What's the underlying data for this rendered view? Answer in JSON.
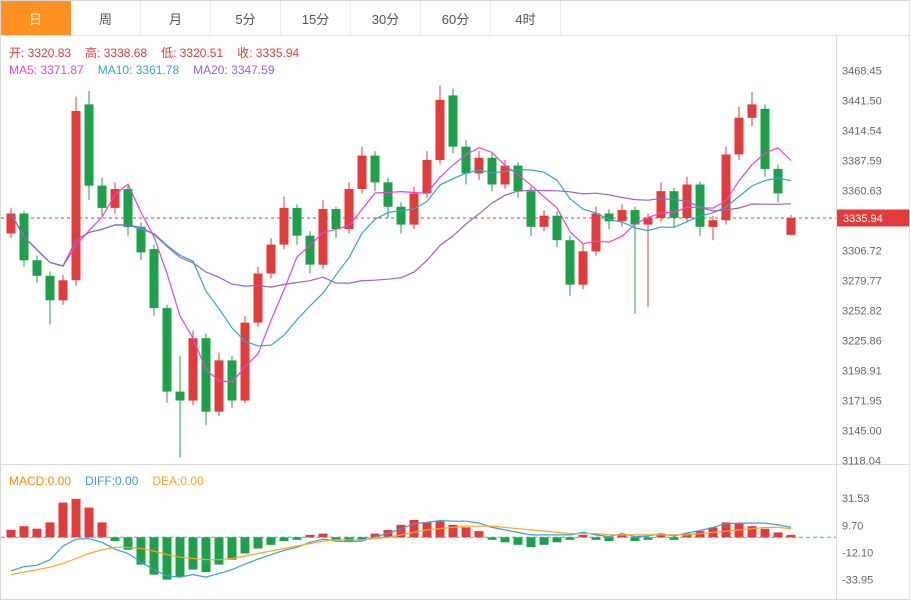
{
  "tabbar": {
    "items": [
      {
        "label": "日",
        "name": "tab-day",
        "active": true
      },
      {
        "label": "周",
        "name": "tab-week",
        "active": false
      },
      {
        "label": "月",
        "name": "tab-month",
        "active": false
      },
      {
        "label": "5分",
        "name": "tab-5min",
        "active": false
      },
      {
        "label": "15分",
        "name": "tab-15min",
        "active": false
      },
      {
        "label": "30分",
        "name": "tab-30min",
        "active": false
      },
      {
        "label": "60分",
        "name": "tab-60min",
        "active": false
      },
      {
        "label": "4时",
        "name": "tab-4hour",
        "active": false
      }
    ]
  },
  "ohlc_readout": {
    "sep": " ",
    "items": [
      {
        "label": "开:",
        "value": "3320.83",
        "color": "#e23b3c"
      },
      {
        "label": "高:",
        "value": "3338.68",
        "color": "#e23b3c"
      },
      {
        "label": "低:",
        "value": "3320.51",
        "color": "#e23b3c"
      },
      {
        "label": "收:",
        "value": "3335.94",
        "color": "#e23b3c"
      }
    ]
  },
  "ma_readout": {
    "sep": " ",
    "items": [
      {
        "label": "MA5:",
        "value": "3371.87",
        "color": "#ef43cf"
      },
      {
        "label": "MA10:",
        "value": "3361.78",
        "color": "#2fa7c9"
      },
      {
        "label": "MA20:",
        "value": "3347.59",
        "color": "#9a63c4"
      }
    ]
  },
  "macd_readout": {
    "sep": "",
    "items": [
      {
        "label": "MACD:",
        "value": "0.00",
        "color": "#ff8a00"
      },
      {
        "label": "DIFF:",
        "value": "0.00",
        "color": "#3c9fd6"
      },
      {
        "label": "DEA:",
        "value": "0.00",
        "color": "#ffa425"
      }
    ]
  },
  "price_axis": {
    "current": "3335.94"
  },
  "chart_data": {
    "type": "candlestick",
    "up_color": "#e23b3c",
    "down_color": "#1ca04a",
    "price_range": [
      3115,
      3494
    ],
    "price_ticks": [
      3468.45,
      3441.5,
      3414.54,
      3387.59,
      3360.63,
      3306.72,
      3279.77,
      3252.82,
      3225.86,
      3198.91,
      3171.95,
      3145.0,
      3118.04
    ],
    "current_price": 3335.94,
    "ohlc_header": {
      "open": 3320.83,
      "high": 3338.68,
      "low": 3320.51,
      "close": 3335.94
    },
    "moving_averages": [
      {
        "name": "MA5",
        "period": 5,
        "color": "#ef43cf",
        "last_value": 3371.87
      },
      {
        "name": "MA10",
        "period": 10,
        "color": "#2fa7c9",
        "last_value": 3361.78
      },
      {
        "name": "MA20",
        "period": 20,
        "color": "#9a63c4",
        "last_value": 3347.59
      }
    ],
    "candles_ohlc": [
      [
        3322,
        3345,
        3318,
        3340
      ],
      [
        3340,
        3342,
        3292,
        3298
      ],
      [
        3298,
        3302,
        3278,
        3284
      ],
      [
        3284,
        3288,
        3240,
        3262
      ],
      [
        3262,
        3285,
        3258,
        3280
      ],
      [
        3280,
        3445,
        3275,
        3432
      ],
      [
        3438,
        3450,
        3352,
        3365
      ],
      [
        3365,
        3372,
        3338,
        3345
      ],
      [
        3345,
        3368,
        3340,
        3362
      ],
      [
        3362,
        3365,
        3320,
        3328
      ],
      [
        3328,
        3332,
        3298,
        3305
      ],
      [
        3308,
        3312,
        3248,
        3255
      ],
      [
        3255,
        3258,
        3170,
        3180
      ],
      [
        3180,
        3212,
        3121,
        3172
      ],
      [
        3172,
        3235,
        3168,
        3228
      ],
      [
        3228,
        3232,
        3150,
        3162
      ],
      [
        3162,
        3215,
        3158,
        3208
      ],
      [
        3208,
        3212,
        3165,
        3172
      ],
      [
        3172,
        3248,
        3170,
        3242
      ],
      [
        3242,
        3292,
        3238,
        3286
      ],
      [
        3286,
        3318,
        3282,
        3312
      ],
      [
        3312,
        3355,
        3308,
        3345
      ],
      [
        3345,
        3348,
        3312,
        3320
      ],
      [
        3320,
        3324,
        3286,
        3294
      ],
      [
        3294,
        3352,
        3290,
        3344
      ],
      [
        3344,
        3346,
        3318,
        3326
      ],
      [
        3326,
        3368,
        3322,
        3362
      ],
      [
        3362,
        3400,
        3358,
        3392
      ],
      [
        3392,
        3396,
        3360,
        3368
      ],
      [
        3368,
        3372,
        3336,
        3346
      ],
      [
        3346,
        3350,
        3322,
        3330
      ],
      [
        3330,
        3364,
        3326,
        3358
      ],
      [
        3358,
        3396,
        3354,
        3388
      ],
      [
        3388,
        3455,
        3384,
        3442
      ],
      [
        3446,
        3452,
        3394,
        3400
      ],
      [
        3400,
        3406,
        3366,
        3376
      ],
      [
        3376,
        3396,
        3370,
        3390
      ],
      [
        3390,
        3394,
        3360,
        3366
      ],
      [
        3366,
        3388,
        3362,
        3383
      ],
      [
        3383,
        3386,
        3354,
        3360
      ],
      [
        3360,
        3364,
        3320,
        3328
      ],
      [
        3328,
        3343,
        3324,
        3338
      ],
      [
        3338,
        3342,
        3310,
        3316
      ],
      [
        3316,
        3320,
        3266,
        3276
      ],
      [
        3276,
        3312,
        3272,
        3306
      ],
      [
        3306,
        3346,
        3302,
        3340
      ],
      [
        3340,
        3344,
        3326,
        3333
      ],
      [
        3333,
        3348,
        3328,
        3343
      ],
      [
        3343,
        3346,
        3250,
        3330
      ],
      [
        3330,
        3340,
        3256,
        3336
      ],
      [
        3336,
        3368,
        3332,
        3360
      ],
      [
        3360,
        3363,
        3328,
        3336
      ],
      [
        3336,
        3373,
        3332,
        3366
      ],
      [
        3366,
        3369,
        3320,
        3328
      ],
      [
        3328,
        3338,
        3316,
        3334
      ],
      [
        3334,
        3400,
        3330,
        3393
      ],
      [
        3393,
        3436,
        3388,
        3426
      ],
      [
        3426,
        3449,
        3418,
        3438
      ],
      [
        3434,
        3438,
        3373,
        3380
      ],
      [
        3380,
        3384,
        3350,
        3358
      ],
      [
        3320.83,
        3338.68,
        3320.51,
        3335.94
      ]
    ],
    "macd": {
      "ticks": [
        31.53,
        9.7,
        -12.1,
        -33.95
      ],
      "range": [
        -48,
        55
      ],
      "zero_line_color": "#35b9c6",
      "diff_color": "#3c9fd6",
      "dea_color": "#ffa425",
      "values_shown": {
        "MACD": "0.00",
        "DIFF": "0.00",
        "DEA": "0.00"
      },
      "histogram": [
        6,
        9,
        7,
        12,
        28,
        31,
        24,
        12,
        -3,
        -10,
        -22,
        -30,
        -34,
        -32,
        -26,
        -28,
        -22,
        -18,
        -13,
        -9,
        -6,
        -3,
        -2,
        2,
        3,
        -2,
        -3,
        -2,
        3,
        6,
        10,
        14,
        12,
        13,
        10,
        8,
        5,
        -2,
        -4,
        -6,
        -8,
        -6,
        -4,
        -2,
        2,
        -2,
        -3,
        2,
        -3,
        -2,
        2,
        -2,
        3,
        5,
        8,
        12,
        11,
        9,
        7,
        4,
        2
      ],
      "diff": [
        -27,
        -23.5,
        -22.5,
        -18,
        -7,
        -1.5,
        -1,
        -4,
        -9.5,
        -13,
        -20,
        -26,
        -31,
        -32,
        -30,
        -32,
        -29,
        -26,
        -21.5,
        -17.5,
        -14,
        -10.5,
        -8,
        -4,
        -1.5,
        -3,
        -3.5,
        -3,
        0.5,
        3,
        7,
        11,
        12,
        13.5,
        13,
        13,
        11.5,
        8,
        6,
        4,
        2,
        2,
        2,
        2,
        4,
        2,
        0.5,
        3,
        0.5,
        1,
        3,
        1,
        3.5,
        5.5,
        8,
        11,
        11.5,
        11.5,
        11.5,
        10,
        8
      ],
      "dea": [
        -30,
        -28,
        -26,
        -24,
        -21,
        -17,
        -13,
        -10,
        -8,
        -8,
        -9,
        -11,
        -14,
        -16,
        -17,
        -18,
        -18,
        -17,
        -15,
        -13,
        -11,
        -9,
        -7,
        -5,
        -3,
        -2,
        -2,
        -2,
        -1,
        0,
        2,
        4,
        6,
        7,
        8,
        9,
        9,
        9,
        8,
        7,
        6,
        5,
        4,
        3,
        3,
        3,
        2,
        2,
        2,
        2,
        2,
        2,
        2,
        3,
        4,
        5,
        6,
        7,
        8,
        8,
        7
      ]
    }
  }
}
